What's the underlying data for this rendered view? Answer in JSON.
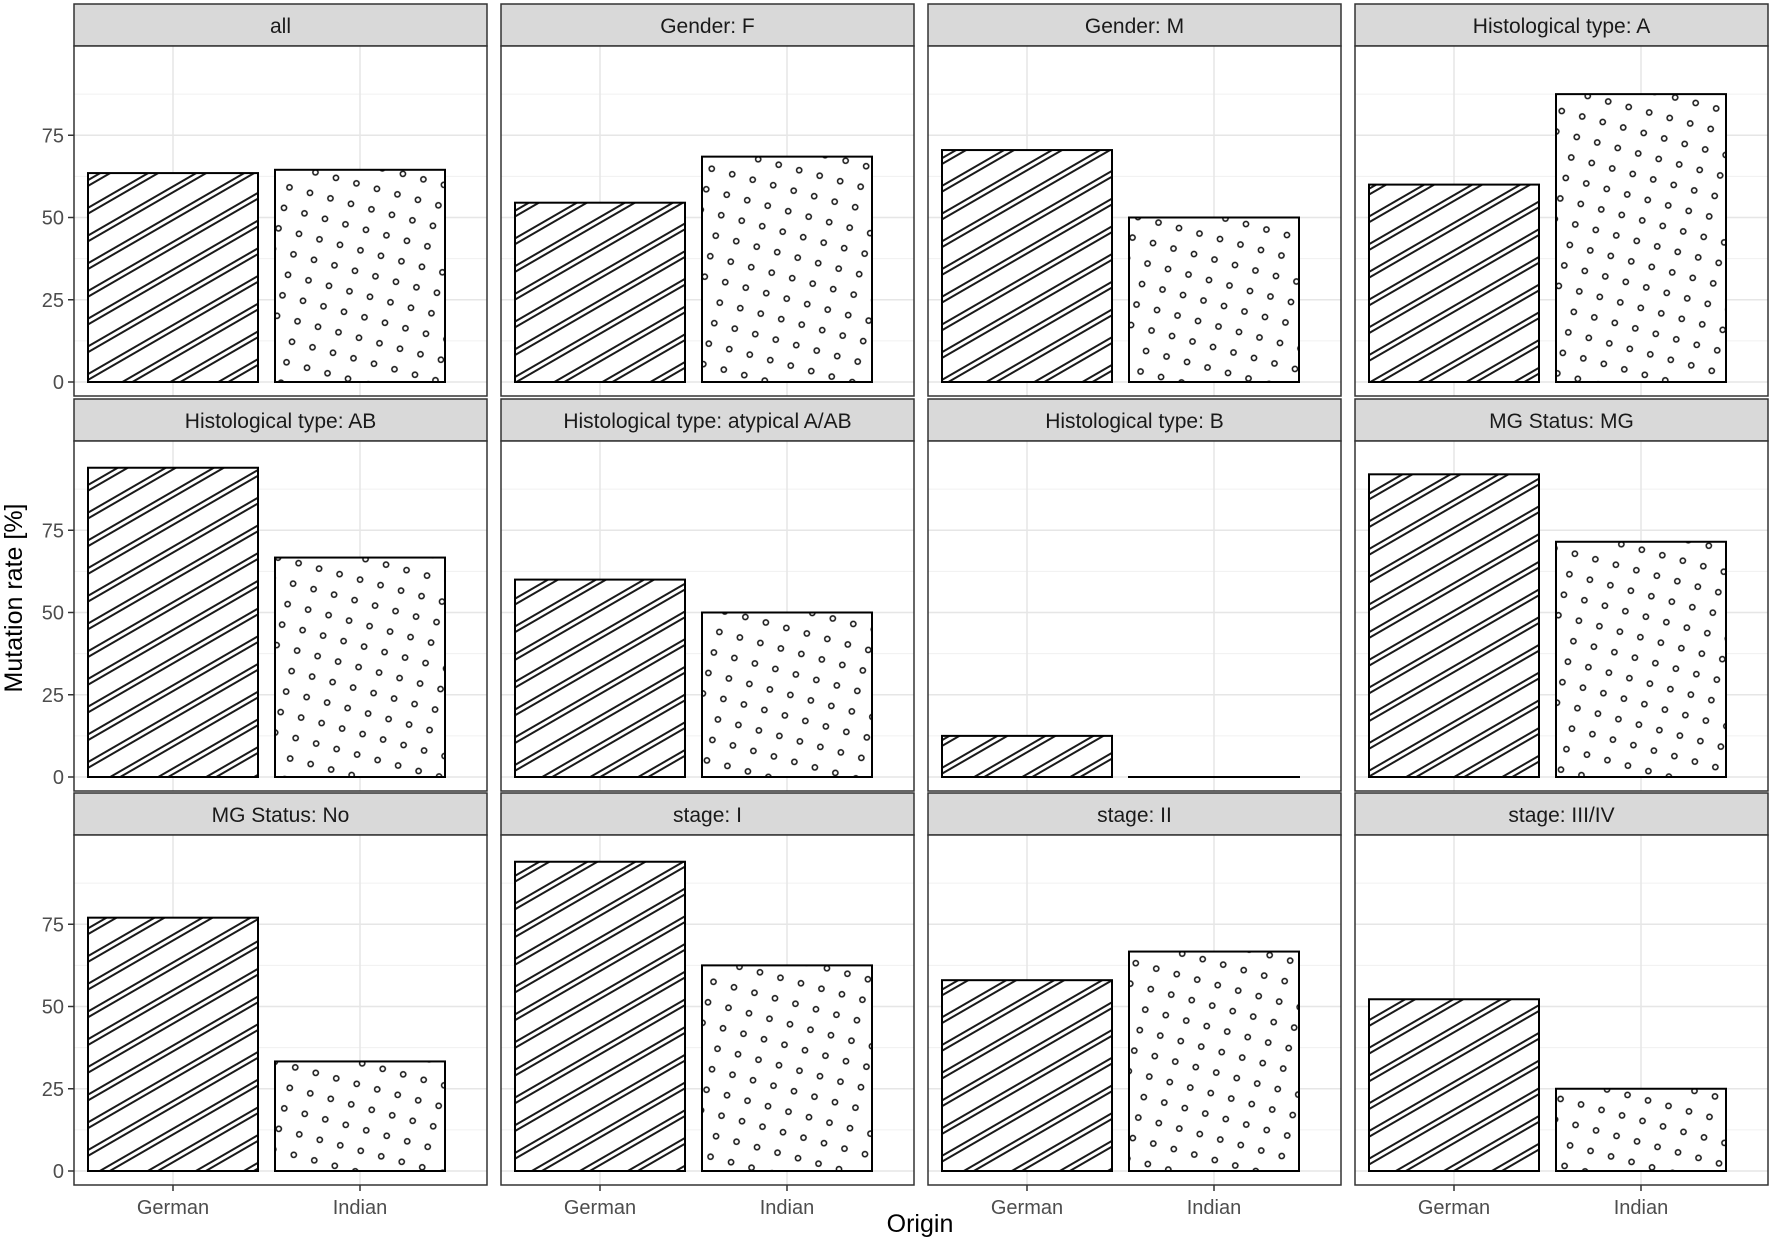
{
  "chart_data": {
    "type": "bar",
    "facet_layout": "4 columns x 3 rows",
    "xlabel": "Origin",
    "ylabel": "Mutation rate [%]",
    "categories": [
      "German",
      "Indian"
    ],
    "ylim": [
      0,
      100
    ],
    "y_ticks": [
      0,
      25,
      50,
      75
    ],
    "grid": true,
    "fill_patterns": {
      "German": "diagonal stripes",
      "Indian": "dots"
    },
    "panels": [
      {
        "title": "all",
        "values": [
          63.5,
          64.5
        ]
      },
      {
        "title": "Gender: F",
        "values": [
          54.5,
          68.5
        ]
      },
      {
        "title": "Gender: M",
        "values": [
          70.5,
          50
        ]
      },
      {
        "title": "Histological type: A",
        "values": [
          60,
          87.5
        ]
      },
      {
        "title": "Histological type: AB",
        "values": [
          94,
          66.7
        ]
      },
      {
        "title": "Histological type: atypical A/AB",
        "values": [
          60,
          50
        ]
      },
      {
        "title": "Histological type: B",
        "values": [
          12.5,
          0
        ]
      },
      {
        "title": "MG Status: MG",
        "values": [
          92,
          71.5
        ]
      },
      {
        "title": "MG Status: No",
        "values": [
          77,
          33.3
        ]
      },
      {
        "title": "stage: I",
        "values": [
          94,
          62.5
        ]
      },
      {
        "title": "stage: II",
        "values": [
          58,
          66.7
        ]
      },
      {
        "title": "stage: III/IV",
        "values": [
          52.2,
          25
        ]
      }
    ]
  }
}
